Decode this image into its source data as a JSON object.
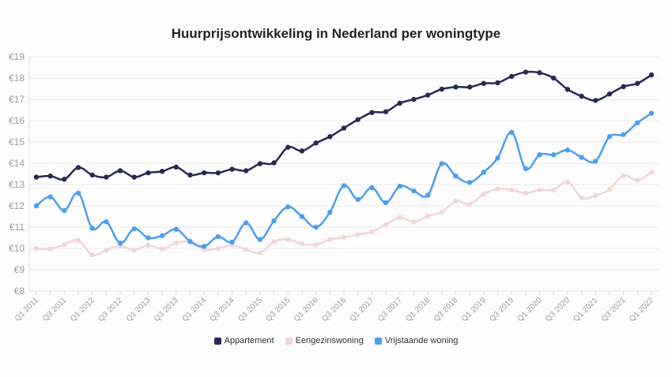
{
  "chart_data": {
    "type": "line",
    "title": "Huurprijsontwikkeling in Nederland per woningtype",
    "xlabel": "",
    "ylabel": "",
    "ylim": [
      8,
      19
    ],
    "yticks": [
      "€8",
      "€9",
      "€10",
      "€11",
      "€12",
      "€13",
      "€14",
      "€15",
      "€16",
      "€17",
      "€18",
      "€19"
    ],
    "x": [
      "Q1 2011",
      "Q2 2011",
      "Q3 2011",
      "Q4 2011",
      "Q1 2012",
      "Q2 2012",
      "Q3 2012",
      "Q4 2012",
      "Q1 2013",
      "Q2 2013",
      "Q3 2013",
      "Q4 2013",
      "Q1 2014",
      "Q2 2014",
      "Q3 2014",
      "Q4 2014",
      "Q1 2015",
      "Q2 2015",
      "Q3 2015",
      "Q4 2015",
      "Q1 2016",
      "Q2 2016",
      "Q3 2016",
      "Q4 2016",
      "Q1 2017",
      "Q2 2017",
      "Q3 2017",
      "Q4 2017",
      "Q1 2018",
      "Q2 2018",
      "Q3 2018",
      "Q4 2018",
      "Q1 2019",
      "Q2 2019",
      "Q3 2019",
      "Q4 2019",
      "Q1 2020",
      "Q2 2020",
      "Q3 2020",
      "Q4 2020",
      "Q1 2021",
      "Q2 2021",
      "Q3 2021",
      "Q4 2021",
      "Q1 2022"
    ],
    "legend_position": "bottom",
    "grid": true,
    "series": [
      {
        "name": "Appartement",
        "color": "#272a52",
        "values": [
          13.35,
          13.4,
          13.25,
          13.8,
          13.45,
          13.35,
          13.65,
          13.35,
          13.55,
          13.62,
          13.82,
          13.45,
          13.55,
          13.55,
          13.72,
          13.65,
          13.98,
          14.02,
          14.75,
          14.58,
          14.95,
          15.25,
          15.65,
          16.05,
          16.38,
          16.42,
          16.82,
          17.0,
          17.2,
          17.48,
          17.58,
          17.58,
          17.75,
          17.78,
          18.08,
          18.28,
          18.25,
          18.0,
          17.47,
          17.15,
          16.95,
          17.25,
          17.6,
          17.75,
          18.15
        ]
      },
      {
        "name": "Eengezinswoning",
        "color": "#f1d6d6",
        "values": [
          10.0,
          9.98,
          10.18,
          10.38,
          9.7,
          9.92,
          10.12,
          9.92,
          10.15,
          9.98,
          10.25,
          10.3,
          9.95,
          10.0,
          10.15,
          9.95,
          9.8,
          10.32,
          10.42,
          10.22,
          10.18,
          10.42,
          10.52,
          10.65,
          10.78,
          11.12,
          11.45,
          11.25,
          11.52,
          11.7,
          12.22,
          12.08,
          12.55,
          12.8,
          12.75,
          12.6,
          12.75,
          12.75,
          13.12,
          12.38,
          12.48,
          12.78,
          13.42,
          13.2,
          13.58
        ]
      },
      {
        "name": "Vrijstaande woning",
        "color": "#4b9ff0",
        "values": [
          12.0,
          12.42,
          11.78,
          12.6,
          10.95,
          11.25,
          10.25,
          10.92,
          10.5,
          10.6,
          10.9,
          10.33,
          10.1,
          10.55,
          10.3,
          11.2,
          10.42,
          11.3,
          11.95,
          11.5,
          11.0,
          11.7,
          12.95,
          12.3,
          12.85,
          12.15,
          12.92,
          12.7,
          12.5,
          13.98,
          13.4,
          13.1,
          13.58,
          14.25,
          15.45,
          13.75,
          14.4,
          14.4,
          14.62,
          14.28,
          14.1,
          15.25,
          15.35,
          15.9,
          16.35
        ]
      }
    ]
  }
}
